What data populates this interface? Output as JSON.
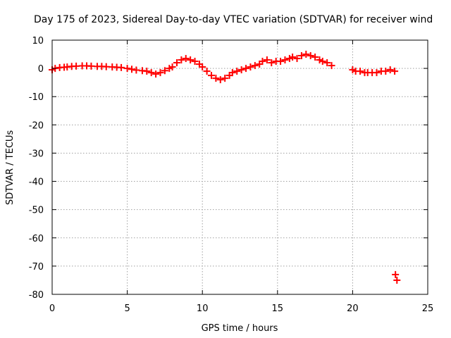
{
  "chart_data": {
    "type": "scatter",
    "title": "Day 175 of 2023, Sidereal Day-to-day VTEC variation (SDTVAR) for receiver wind",
    "xlabel": "GPS time / hours",
    "ylabel": "SDTVAR / TECUs",
    "xlim": [
      0,
      25
    ],
    "ylim": [
      -80,
      10
    ],
    "xticks": [
      "0",
      "5",
      "10",
      "15",
      "20",
      "25"
    ],
    "yticks": [
      "10",
      "0",
      "-10",
      "-20",
      "-30",
      "-40",
      "-50",
      "-60",
      "-70",
      "-80"
    ],
    "grid": true,
    "marker": "plus",
    "series": [
      {
        "name": "SDTVAR",
        "color": "#ff0000",
        "x": [
          0.0,
          0.2,
          0.5,
          0.8,
          1.0,
          1.3,
          1.6,
          2.0,
          2.3,
          2.6,
          3.0,
          3.3,
          3.6,
          4.0,
          4.3,
          4.6,
          5.0,
          5.3,
          5.6,
          6.0,
          6.3,
          6.6,
          6.9,
          7.2,
          7.5,
          7.8,
          8.0,
          8.3,
          8.6,
          8.9,
          9.2,
          9.5,
          9.8,
          10.0,
          10.3,
          10.6,
          10.9,
          11.2,
          11.5,
          11.8,
          12.0,
          12.3,
          12.6,
          12.9,
          13.2,
          13.5,
          13.8,
          14.0,
          14.3,
          14.6,
          14.9,
          15.2,
          15.5,
          15.8,
          16.0,
          16.3,
          16.6,
          16.9,
          17.2,
          17.5,
          17.8,
          18.0,
          18.3,
          18.6,
          20.0,
          20.2,
          20.5,
          20.8,
          21.0,
          21.3,
          21.6,
          21.9,
          22.2,
          22.5,
          22.8,
          22.85,
          22.95
        ],
        "y": [
          -0.5,
          0.0,
          0.3,
          0.4,
          0.5,
          0.7,
          0.8,
          0.9,
          0.9,
          0.8,
          0.7,
          0.7,
          0.6,
          0.5,
          0.4,
          0.3,
          0.0,
          -0.3,
          -0.6,
          -0.8,
          -1.0,
          -1.5,
          -2.0,
          -1.5,
          -0.8,
          0.0,
          0.5,
          2.0,
          3.0,
          3.5,
          3.0,
          2.5,
          1.5,
          0.5,
          -1.0,
          -2.5,
          -3.5,
          -4.0,
          -3.5,
          -2.5,
          -1.5,
          -1.0,
          -0.5,
          0.0,
          0.5,
          1.0,
          1.5,
          2.5,
          3.0,
          2.0,
          2.5,
          2.5,
          3.0,
          3.5,
          4.0,
          3.5,
          4.5,
          5.0,
          4.5,
          4.0,
          3.0,
          2.5,
          2.0,
          1.0,
          -0.5,
          -1.0,
          -1.0,
          -1.5,
          -1.5,
          -1.5,
          -1.5,
          -1.0,
          -1.0,
          -0.5,
          -1.0,
          -73.0,
          -75.0
        ]
      }
    ]
  }
}
